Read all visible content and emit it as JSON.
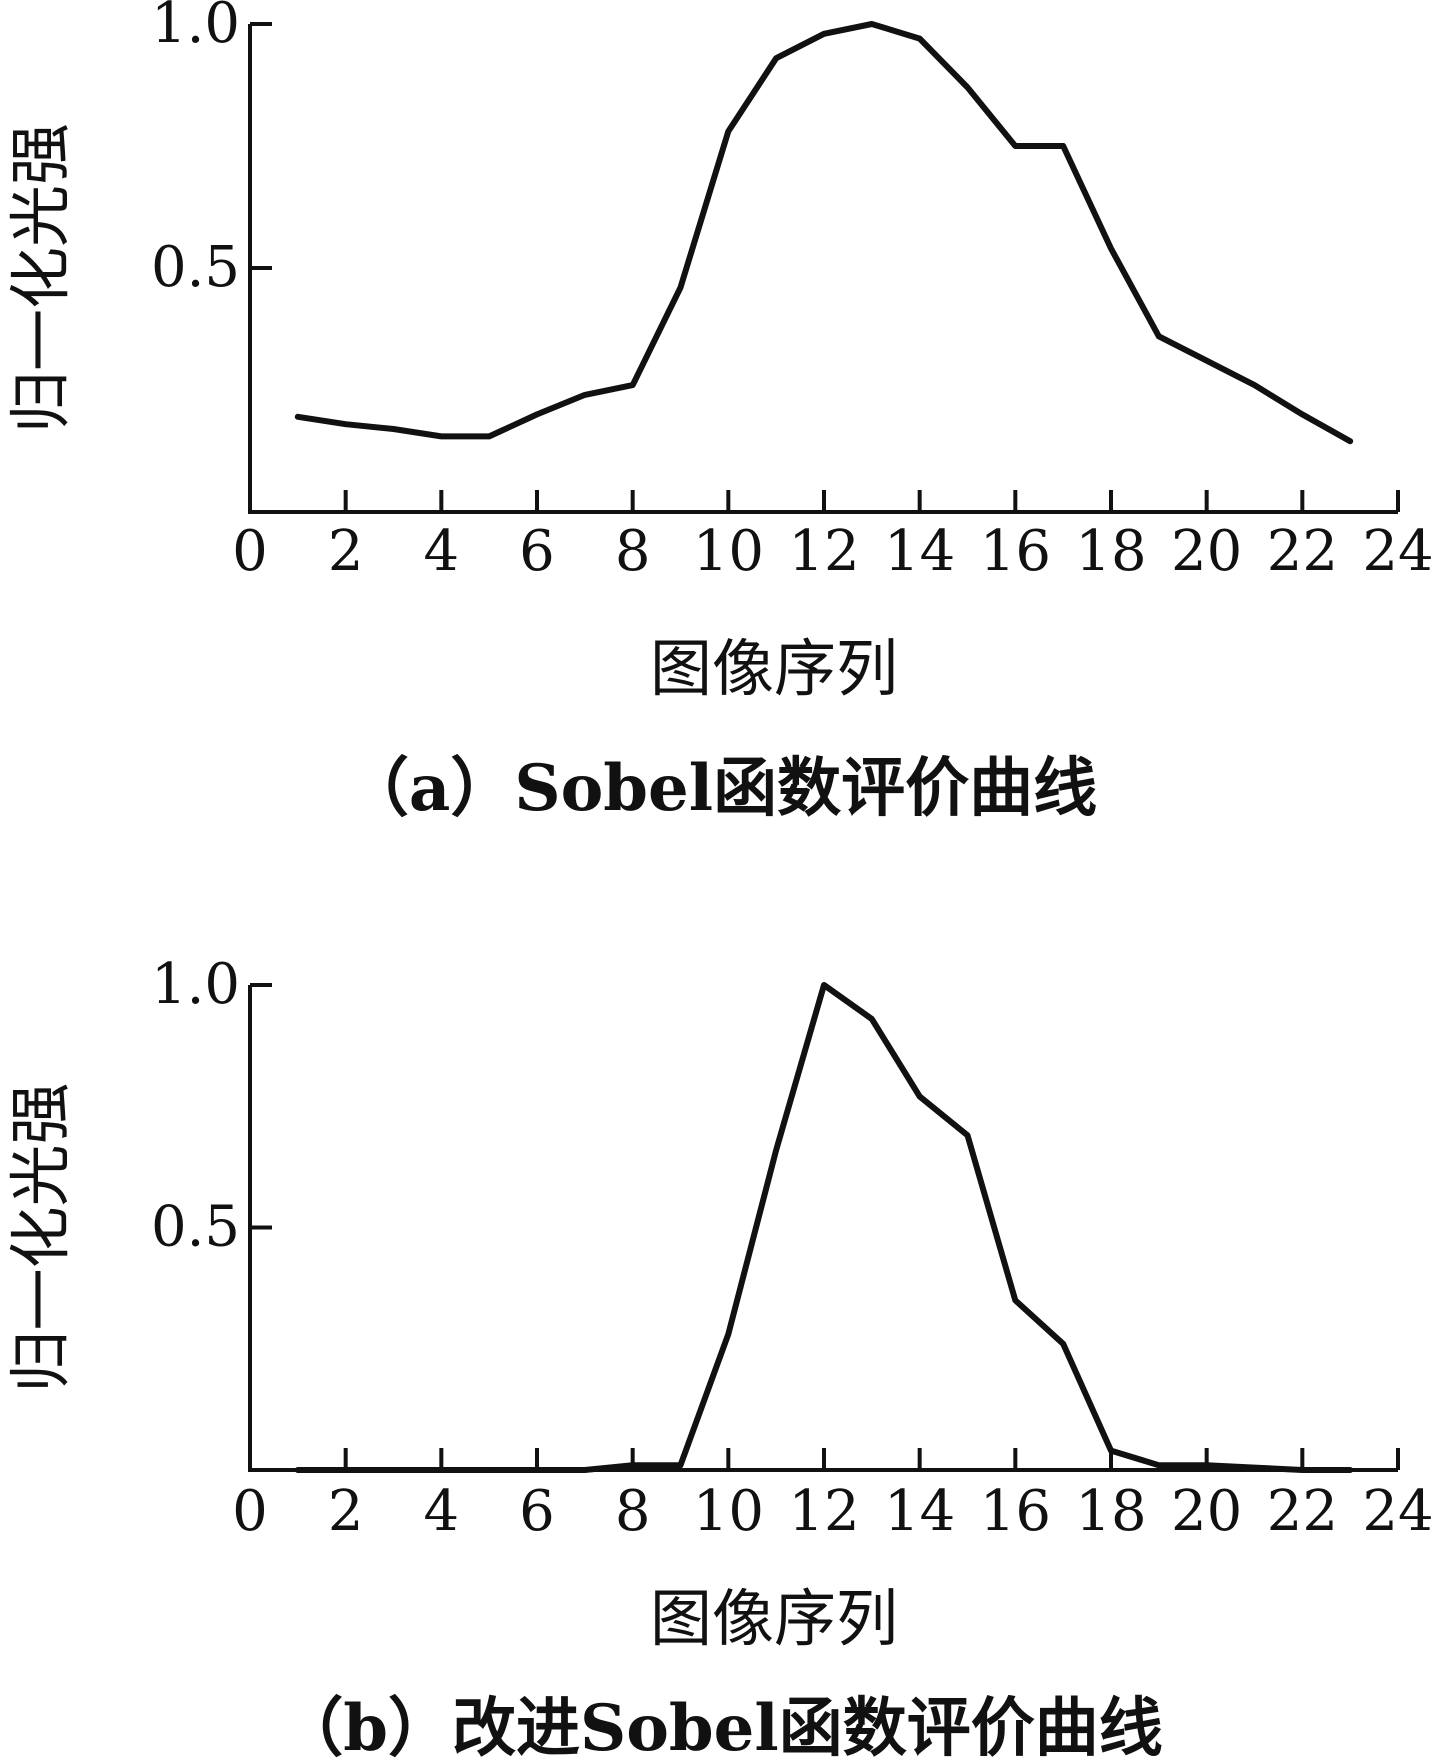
{
  "chart_data": [
    {
      "type": "line",
      "caption": "（a）Sobel函数评价曲线",
      "xlabel": "图像序列",
      "ylabel": "归一化光强",
      "xlim": [
        0,
        24
      ],
      "ylim": [
        0,
        1.0
      ],
      "xticks": [
        0,
        2,
        4,
        6,
        8,
        10,
        12,
        14,
        16,
        18,
        20,
        22,
        24
      ],
      "xtick_labels": [
        "0",
        "2",
        "4",
        "6",
        "8",
        "10",
        "12",
        "14",
        "16",
        "18",
        "20",
        "22",
        "24"
      ],
      "yticks": [
        0.5,
        1.0
      ],
      "ytick_labels": [
        "0.5",
        "1.0"
      ],
      "grid": false,
      "series": [
        {
          "x": [
            1,
            2,
            3,
            4,
            5,
            6,
            7,
            8,
            9,
            10,
            11,
            12,
            13,
            14,
            15,
            16,
            17,
            18,
            19,
            20,
            21,
            22,
            23
          ],
          "y": [
            0.195,
            0.18,
            0.17,
            0.155,
            0.155,
            0.2,
            0.24,
            0.26,
            0.46,
            0.78,
            0.93,
            0.98,
            1.0,
            0.97,
            0.87,
            0.75,
            0.75,
            0.54,
            0.36,
            0.31,
            0.26,
            0.2,
            0.145
          ]
        }
      ]
    },
    {
      "type": "line",
      "caption": "（b）改进Sobel函数评价曲线",
      "xlabel": "图像序列",
      "ylabel": "归一化光强",
      "xlim": [
        0,
        24
      ],
      "ylim": [
        0,
        1.0
      ],
      "xticks": [
        0,
        2,
        4,
        6,
        8,
        10,
        12,
        14,
        16,
        18,
        20,
        22,
        24
      ],
      "xtick_labels": [
        "0",
        "2",
        "4",
        "6",
        "8",
        "10",
        "12",
        "14",
        "16",
        "18",
        "20",
        "22",
        "24"
      ],
      "yticks": [
        0.5,
        1.0
      ],
      "ytick_labels": [
        "0.5",
        "1.0"
      ],
      "grid": false,
      "series": [
        {
          "x": [
            1,
            2,
            3,
            4,
            5,
            6,
            7,
            8,
            9,
            10,
            11,
            12,
            13,
            14,
            15,
            16,
            17,
            18,
            19,
            20,
            21,
            22,
            23
          ],
          "y": [
            0.0,
            0.0,
            0.0,
            0.0,
            0.0,
            0.0,
            0.0,
            0.01,
            0.01,
            0.28,
            0.66,
            1.0,
            0.93,
            0.77,
            0.69,
            0.35,
            0.26,
            0.04,
            0.01,
            0.01,
            0.005,
            0.0,
            0.0
          ]
        }
      ]
    }
  ]
}
